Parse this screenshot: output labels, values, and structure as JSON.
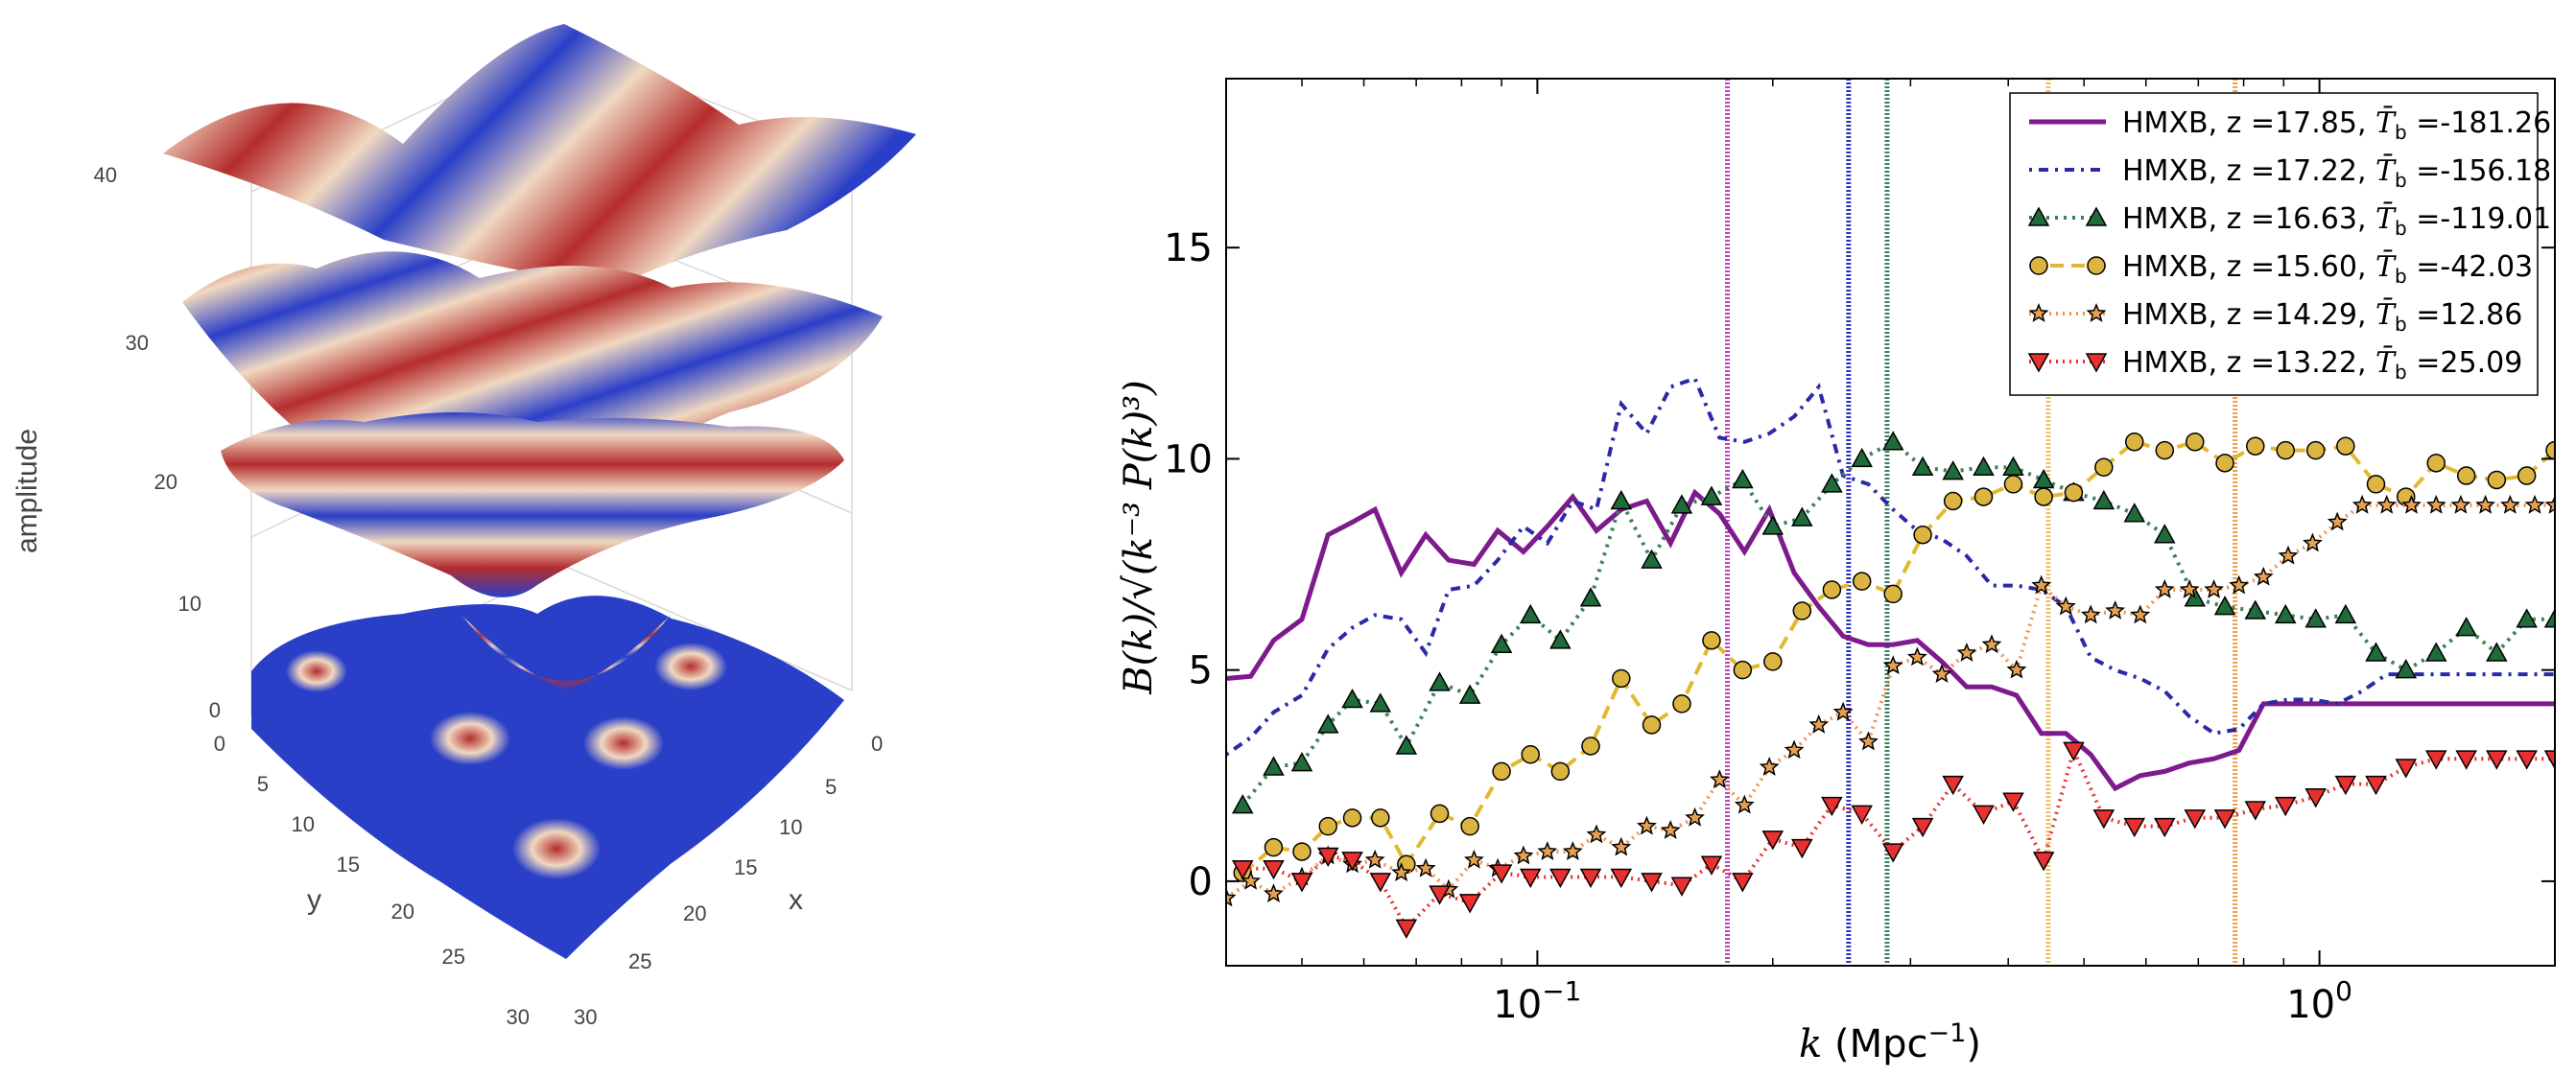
{
  "left_plot": {
    "ylabel": "amplitude",
    "z_ticks": [
      "0",
      "10",
      "20",
      "30",
      "40"
    ],
    "y_label": "y",
    "x_label": "x",
    "y_ticks": [
      "0",
      "5",
      "10",
      "15",
      "20",
      "25",
      "30"
    ],
    "x_ticks": [
      "0",
      "5",
      "10",
      "15",
      "20",
      "25",
      "30"
    ],
    "colors": {
      "red": "#b42d2d",
      "mid": "#f0d8c0",
      "blue": "#2a3fc8"
    }
  },
  "chart_data": {
    "type": "line",
    "xlabel_var": "k",
    "xlabel_unit": "(Mpc",
    "xlabel_sup": "−1",
    "xlabel_close": ")",
    "ylabel": "B(k)/√(k⁻³ P(k)³)",
    "x_scale": "log",
    "xlim": [
      0.04,
      2.0
    ],
    "ylim": [
      -2,
      19
    ],
    "y_ticks": [
      0,
      5,
      10,
      15
    ],
    "x_ticks": [
      {
        "value": 0.1,
        "base": "10",
        "exp": "−1"
      },
      {
        "value": 1.0,
        "base": "10",
        "exp": "0"
      }
    ],
    "legend_position": "top-right",
    "vlines": [
      {
        "x": 0.175,
        "color": "#c040c0"
      },
      {
        "x": 0.25,
        "color": "#3030c0"
      },
      {
        "x": 0.28,
        "color": "#3a8060"
      },
      {
        "x": 0.45,
        "color": "#f0c060"
      },
      {
        "x": 0.78,
        "color": "#f0a050"
      }
    ],
    "series": [
      {
        "name": "HMXB, z =17.85, T̄b =-181.26",
        "label_prefix": "HMXB, z =17.85, ",
        "label_value": " =-181.26",
        "color": "#7d1a8c",
        "dash": "",
        "marker": "none",
        "x": [
          0.04,
          0.043,
          0.046,
          0.05,
          0.054,
          0.058,
          0.062,
          0.067,
          0.072,
          0.077,
          0.083,
          0.089,
          0.096,
          0.103,
          0.111,
          0.119,
          0.128,
          0.138,
          0.148,
          0.159,
          0.171,
          0.184,
          0.198,
          0.213,
          0.229,
          0.246,
          0.265,
          0.285,
          0.306,
          0.329,
          0.354,
          0.381,
          0.41,
          0.441,
          0.474,
          0.51,
          0.548,
          0.59,
          0.634,
          0.682,
          0.733,
          0.789,
          0.848,
          0.912,
          0.98,
          1.054,
          1.134,
          1.219,
          1.311,
          1.41,
          1.516,
          1.63,
          1.753,
          1.885,
          2.0
        ],
        "y": [
          4.8,
          4.85,
          5.7,
          6.2,
          8.2,
          8.5,
          8.8,
          7.3,
          8.2,
          7.6,
          7.5,
          8.3,
          7.8,
          8.4,
          9.1,
          8.3,
          8.8,
          9.0,
          8.0,
          9.2,
          8.7,
          7.8,
          8.8,
          7.3,
          6.5,
          5.8,
          5.6,
          5.6,
          5.7,
          5.2,
          4.6,
          4.6,
          4.4,
          3.5,
          3.5,
          3.0,
          2.2,
          2.5,
          2.6,
          2.8,
          2.9,
          3.1,
          4.2,
          4.2,
          4.2,
          4.2,
          4.2,
          4.2,
          4.2,
          4.2,
          4.2,
          4.2,
          4.2,
          4.2,
          4.2
        ]
      },
      {
        "name": "HMXB, z =17.22, T̄b =-156.18",
        "label_prefix": "HMXB, z =17.22, ",
        "label_value": " =-156.18",
        "color": "#2a2aa8",
        "dash": "3,7,10,7",
        "marker": "none",
        "x": [
          0.04,
          0.043,
          0.046,
          0.05,
          0.054,
          0.058,
          0.062,
          0.067,
          0.072,
          0.077,
          0.083,
          0.089,
          0.096,
          0.103,
          0.111,
          0.119,
          0.128,
          0.138,
          0.148,
          0.159,
          0.171,
          0.184,
          0.198,
          0.213,
          0.229,
          0.246,
          0.265,
          0.285,
          0.306,
          0.329,
          0.354,
          0.381,
          0.41,
          0.441,
          0.474,
          0.51,
          0.548,
          0.59,
          0.634,
          0.682,
          0.733,
          0.789,
          0.848,
          0.912,
          0.98,
          1.054,
          1.134,
          1.219,
          1.311,
          1.41,
          1.516,
          1.63,
          1.753,
          1.885,
          2.0
        ],
        "y": [
          3.0,
          3.4,
          4.0,
          4.4,
          5.5,
          6.0,
          6.3,
          6.2,
          5.4,
          6.9,
          7.0,
          7.6,
          8.4,
          8.0,
          9.0,
          8.8,
          11.3,
          10.6,
          11.7,
          11.9,
          10.5,
          10.4,
          10.6,
          11.0,
          11.7,
          9.6,
          9.4,
          8.8,
          8.3,
          8.1,
          7.7,
          7.0,
          7.0,
          6.9,
          6.5,
          5.3,
          5.0,
          4.8,
          4.5,
          3.9,
          3.5,
          3.6,
          4.2,
          4.3,
          4.3,
          4.2,
          4.5,
          4.9,
          4.9,
          4.9,
          4.9,
          4.9,
          4.9,
          4.9,
          4.9
        ]
      },
      {
        "name": "HMXB, z =16.63, T̄b =-119.01",
        "label_prefix": "HMXB, z =16.63, ",
        "label_value": " =-119.01",
        "color": "#3a8060",
        "dash": "3,6",
        "marker": "triangle-up",
        "marker_fill": "#1f6b3a",
        "x": [
          0.042,
          0.046,
          0.05,
          0.054,
          0.058,
          0.063,
          0.068,
          0.075,
          0.082,
          0.09,
          0.098,
          0.107,
          0.117,
          0.128,
          0.14,
          0.153,
          0.167,
          0.183,
          0.2,
          0.218,
          0.238,
          0.26,
          0.285,
          0.311,
          0.34,
          0.372,
          0.406,
          0.444,
          0.485,
          0.53,
          0.58,
          0.634,
          0.693,
          0.757,
          0.828,
          0.905,
          0.989,
          1.08,
          1.181,
          1.29,
          1.41,
          1.541,
          1.685,
          1.841,
          2.0
        ],
        "y": [
          1.8,
          2.7,
          2.8,
          3.7,
          4.3,
          4.2,
          3.2,
          4.7,
          4.4,
          5.6,
          6.3,
          5.7,
          6.7,
          9.0,
          7.6,
          8.9,
          9.1,
          9.5,
          8.4,
          8.6,
          9.4,
          10.0,
          10.4,
          9.8,
          9.7,
          9.8,
          9.8,
          9.5,
          9.2,
          9.0,
          8.7,
          8.2,
          6.7,
          6.5,
          6.4,
          6.3,
          6.2,
          6.3,
          5.4,
          5.0,
          5.4,
          6.0,
          5.4,
          6.2,
          6.2
        ]
      },
      {
        "name": "HMXB, z =15.60, T̄b =-42.03",
        "label_prefix": "HMXB, z =15.60, ",
        "label_value": " =-42.03",
        "color": "#e2b830",
        "dash": "14,8",
        "marker": "circle",
        "marker_fill": "#dcb440",
        "x": [
          0.042,
          0.046,
          0.05,
          0.054,
          0.058,
          0.063,
          0.068,
          0.075,
          0.082,
          0.09,
          0.098,
          0.107,
          0.117,
          0.128,
          0.14,
          0.153,
          0.167,
          0.183,
          0.2,
          0.218,
          0.238,
          0.26,
          0.285,
          0.311,
          0.34,
          0.372,
          0.406,
          0.444,
          0.485,
          0.53,
          0.58,
          0.634,
          0.693,
          0.757,
          0.828,
          0.905,
          0.989,
          1.08,
          1.181,
          1.29,
          1.41,
          1.541,
          1.685,
          1.841,
          2.0
        ],
        "y": [
          0.2,
          0.8,
          0.7,
          1.3,
          1.5,
          1.5,
          0.4,
          1.6,
          1.3,
          2.6,
          3.0,
          2.6,
          3.2,
          4.8,
          3.7,
          4.2,
          5.7,
          5.0,
          5.2,
          6.4,
          6.9,
          7.1,
          6.8,
          8.2,
          9.0,
          9.1,
          9.4,
          9.1,
          9.2,
          9.8,
          10.4,
          10.2,
          10.4,
          9.9,
          10.3,
          10.2,
          10.2,
          10.3,
          9.4,
          9.1,
          9.9,
          9.6,
          9.5,
          9.6,
          10.2
        ]
      },
      {
        "name": "HMXB, z =14.29, T̄b =12.86",
        "label_prefix": "HMXB, z =14.29, ",
        "label_value": " =12.86",
        "color": "#f09050",
        "dash": "2,5",
        "marker": "star",
        "marker_fill": "#e8a050",
        "x": [
          0.04,
          0.043,
          0.046,
          0.05,
          0.054,
          0.058,
          0.062,
          0.067,
          0.072,
          0.077,
          0.083,
          0.089,
          0.096,
          0.103,
          0.111,
          0.119,
          0.128,
          0.138,
          0.148,
          0.159,
          0.171,
          0.184,
          0.198,
          0.213,
          0.229,
          0.246,
          0.265,
          0.285,
          0.306,
          0.329,
          0.354,
          0.381,
          0.41,
          0.441,
          0.474,
          0.51,
          0.548,
          0.59,
          0.634,
          0.682,
          0.733,
          0.789,
          0.848,
          0.912,
          0.98,
          1.054,
          1.134,
          1.219,
          1.311,
          1.41,
          1.516,
          1.63,
          1.753,
          1.885,
          2.0
        ],
        "y": [
          -0.4,
          0.0,
          -0.3,
          0.1,
          0.6,
          0.4,
          0.5,
          0.2,
          0.3,
          -0.2,
          0.5,
          0.3,
          0.6,
          0.7,
          0.7,
          1.1,
          0.8,
          1.3,
          1.2,
          1.5,
          2.4,
          1.8,
          2.7,
          3.1,
          3.7,
          4.0,
          3.3,
          5.1,
          5.3,
          4.9,
          5.4,
          5.6,
          5.0,
          7.0,
          6.5,
          6.3,
          6.4,
          6.3,
          6.9,
          6.9,
          6.9,
          7.0,
          7.2,
          7.7,
          8.0,
          8.5,
          8.9,
          8.9,
          8.9,
          8.9,
          8.9,
          8.9,
          8.9,
          8.9,
          8.9
        ]
      },
      {
        "name": "HMXB, z =13.22, T̄b =25.09",
        "label_prefix": "HMXB, z =13.22, ",
        "label_value": " =25.09",
        "color": "#e83030",
        "dash": "2,5",
        "marker": "triangle-down",
        "marker_fill": "#e83030",
        "x": [
          0.042,
          0.046,
          0.05,
          0.054,
          0.058,
          0.063,
          0.068,
          0.075,
          0.082,
          0.09,
          0.098,
          0.107,
          0.117,
          0.128,
          0.14,
          0.153,
          0.167,
          0.183,
          0.2,
          0.218,
          0.238,
          0.26,
          0.285,
          0.311,
          0.34,
          0.372,
          0.406,
          0.444,
          0.485,
          0.53,
          0.58,
          0.634,
          0.693,
          0.757,
          0.828,
          0.905,
          0.989,
          1.08,
          1.181,
          1.29,
          1.41,
          1.541,
          1.685,
          1.841,
          2.0
        ],
        "y": [
          0.3,
          0.3,
          0.0,
          0.6,
          0.5,
          0.0,
          -1.1,
          -0.3,
          -0.5,
          0.2,
          0.1,
          0.1,
          0.1,
          0.1,
          0.0,
          -0.1,
          0.4,
          0.0,
          1.0,
          0.8,
          1.8,
          1.6,
          0.7,
          1.3,
          2.3,
          1.6,
          1.9,
          0.5,
          3.1,
          1.5,
          1.3,
          1.3,
          1.5,
          1.5,
          1.7,
          1.8,
          2.0,
          2.3,
          2.3,
          2.7,
          2.9,
          2.9,
          2.9,
          2.9,
          2.9
        ]
      }
    ]
  }
}
